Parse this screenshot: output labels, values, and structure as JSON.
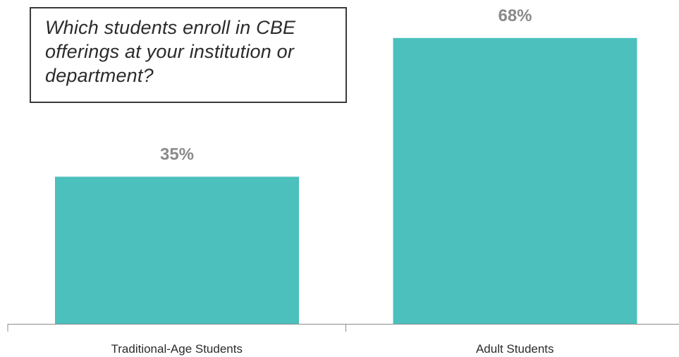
{
  "question": "Which students enroll in CBE offerings at your institution or department?",
  "chart_data": {
    "type": "bar",
    "title": "",
    "categories": [
      "Traditional-Age Students",
      "Adult Students"
    ],
    "values": [
      35,
      68
    ],
    "value_labels": [
      "35%",
      "68%"
    ],
    "ylim": [
      0,
      72
    ],
    "bar_color": "#4bc0bd",
    "label_color": "#8a8a8a",
    "axis_color": "#8c8c8c",
    "grid": false,
    "legend": "none"
  }
}
